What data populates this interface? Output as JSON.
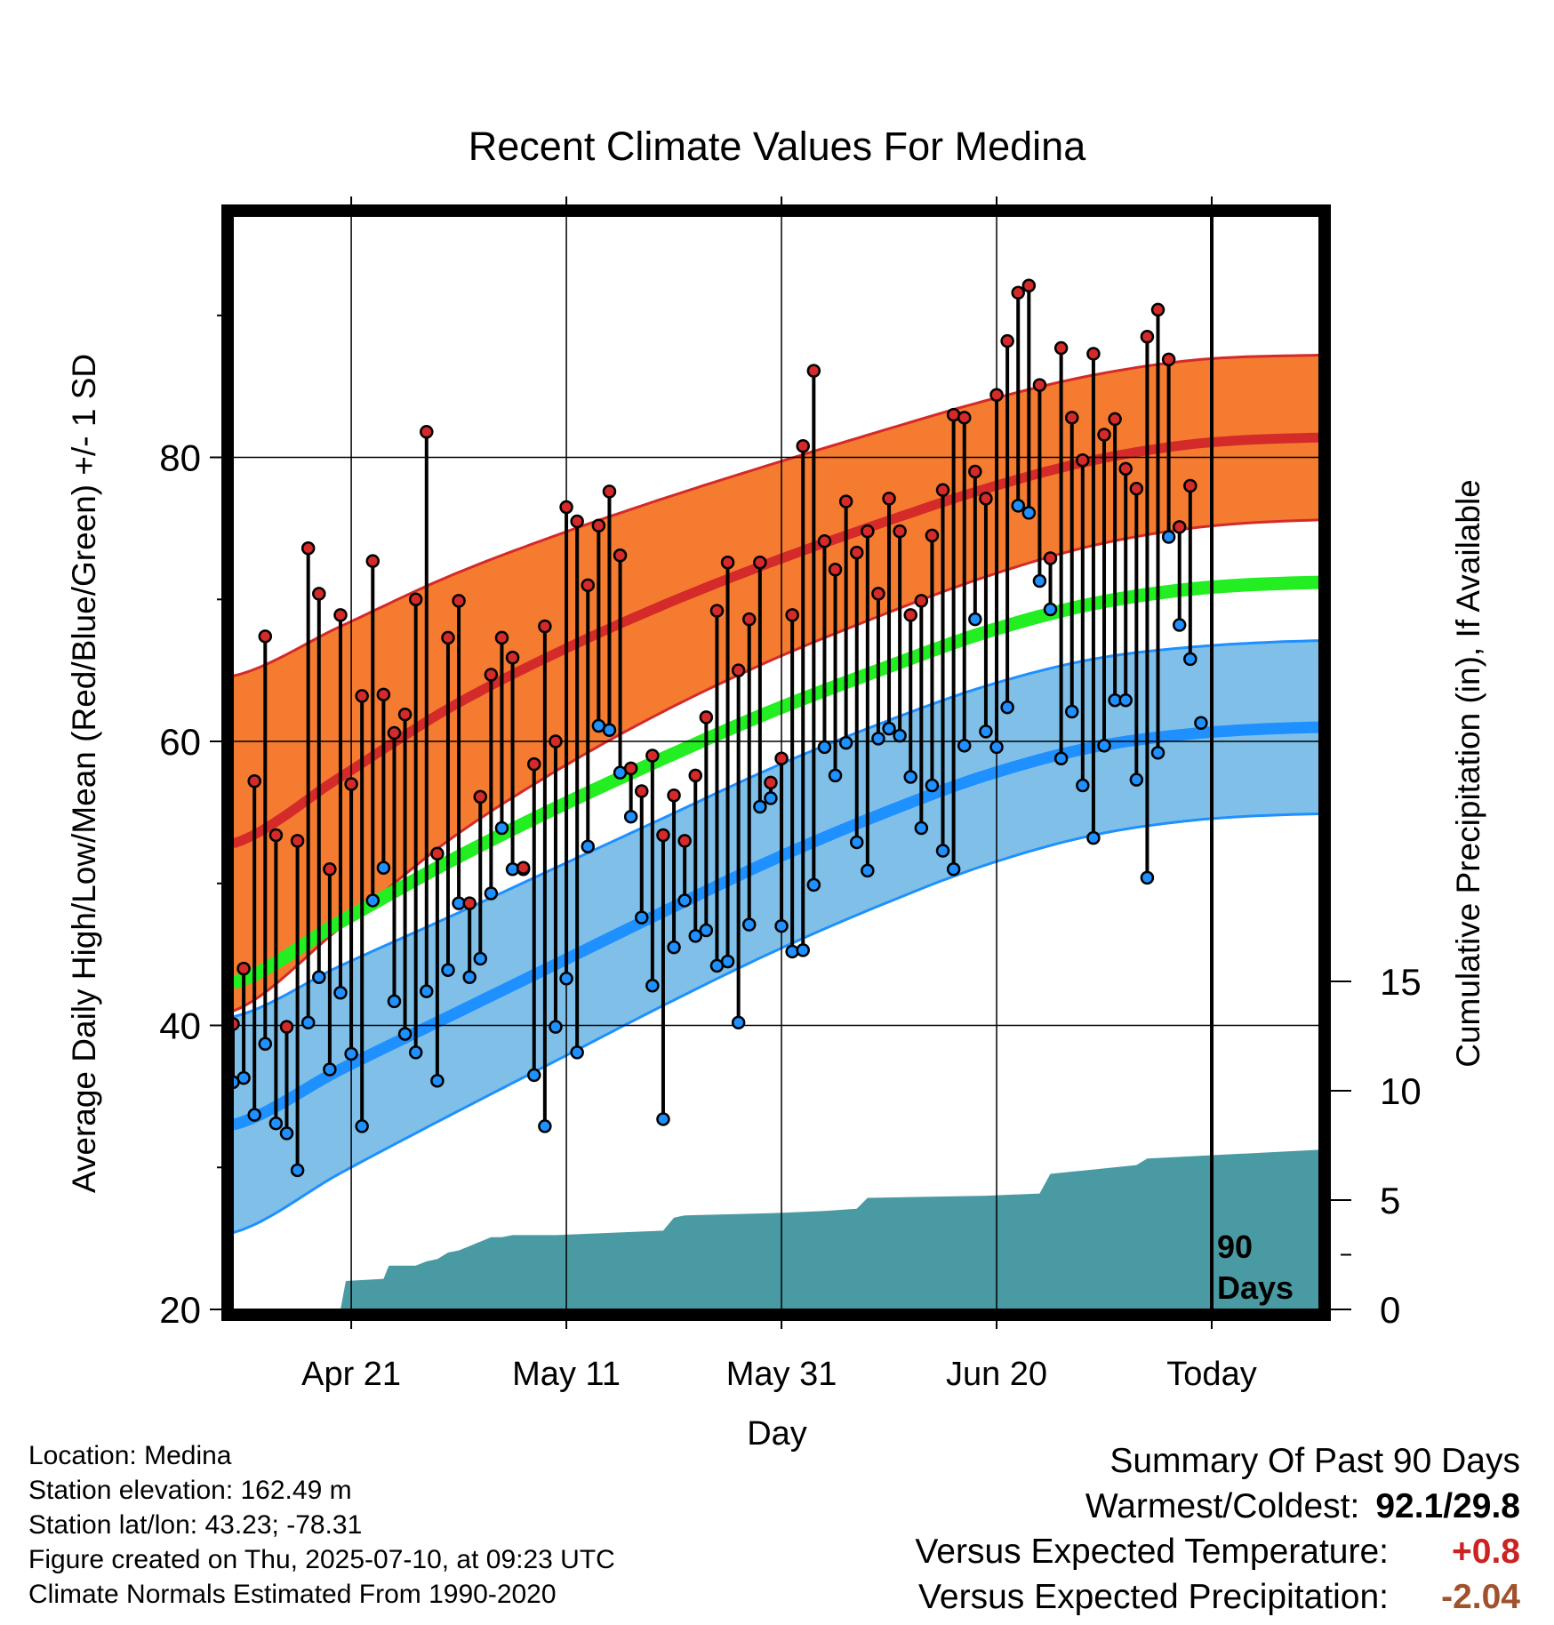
{
  "title": "Recent Climate Values For Medina",
  "info": {
    "location": "Location: Medina",
    "elevation": "Station elevation: 162.49 m",
    "latlon": "Station lat/lon: 43.23; -78.31",
    "created": "Figure created on Thu, 2025-07-10, at 09:23 UTC",
    "normals": "Climate Normals Estimated From 1990-2020"
  },
  "summary": {
    "heading": "Summary Of Past 90 Days",
    "warmest_label": "Warmest/Coldest:",
    "warmest_value": "92.1/29.8",
    "temp_label": "Versus Expected Temperature:",
    "temp_value": "+0.8",
    "temp_color": "#cc2222",
    "precip_label": "Versus Expected Precipitation:",
    "precip_value": "-2.04",
    "precip_color": "#a0522d"
  },
  "chart_data": {
    "type": "line",
    "title": "Recent Climate Values For Medina",
    "xlabel": "Day",
    "ylabel": "Average Daily High/Low/Mean (Red/Blue/Green) +/- 1 SD",
    "y2label": "Cumulative Precipitation (in), If Available",
    "xlim": [
      0,
      101
    ],
    "ylim": [
      20,
      97
    ],
    "y2lim": [
      0,
      15
    ],
    "y2_range_shown": [
      0,
      15
    ],
    "x_ticks": [
      {
        "x": 11,
        "label": "Apr 21"
      },
      {
        "x": 31,
        "label": "May 11"
      },
      {
        "x": 51,
        "label": "May 31"
      },
      {
        "x": 71,
        "label": "Jun 20"
      },
      {
        "x": 91,
        "label": "Today"
      }
    ],
    "y_ticks": [
      20,
      40,
      60,
      80
    ],
    "y_minor_ticks": [
      30,
      50,
      70,
      90
    ],
    "y2_ticks": [
      0,
      5,
      10,
      15
    ],
    "today_x": 91,
    "today_label": [
      "90",
      "Days"
    ],
    "colors": {
      "high_band": "#f47b30",
      "high_line": "#d42a2a",
      "low_band": "#80c0e8",
      "low_line": "#1e90ff",
      "mean_line": "#22ee22",
      "precip": "#4a9aa4",
      "high_dot": "#d42a2a",
      "low_dot": "#1e90ff"
    },
    "normals": {
      "x": [
        0,
        10,
        20,
        30,
        40,
        50,
        60,
        70,
        80,
        90,
        101
      ],
      "high_mean": [
        52.8,
        57.5,
        62.3,
        66.2,
        69.6,
        72.6,
        75.3,
        77.8,
        79.8,
        81.0,
        81.4
      ],
      "high_sd": [
        11.8,
        10.6,
        9.3,
        8.3,
        7.5,
        6.9,
        6.5,
        6.2,
        6.0,
        5.9,
        5.8
      ],
      "low_mean": [
        33.0,
        36.9,
        40.6,
        44.3,
        48.0,
        51.6,
        54.8,
        57.6,
        59.6,
        60.6,
        61.0
      ],
      "low_sd": [
        7.6,
        7.3,
        7.0,
        6.8,
        6.6,
        6.5,
        6.4,
        6.3,
        6.2,
        6.1,
        6.1
      ],
      "mean": [
        43.0,
        47.3,
        51.5,
        55.3,
        58.8,
        62.1,
        65.0,
        67.7,
        69.7,
        70.8,
        71.2
      ]
    },
    "daily": {
      "x": [
        0,
        1,
        2,
        3,
        4,
        5,
        6,
        7,
        8,
        9,
        10,
        11,
        12,
        13,
        14,
        15,
        16,
        17,
        18,
        19,
        20,
        21,
        22,
        23,
        24,
        25,
        26,
        27,
        28,
        29,
        30,
        31,
        32,
        33,
        34,
        35,
        36,
        37,
        38,
        39,
        40,
        41,
        42,
        43,
        44,
        45,
        46,
        47,
        48,
        49,
        50,
        51,
        52,
        53,
        54,
        55,
        56,
        57,
        58,
        59,
        60,
        61,
        62,
        63,
        64,
        65,
        66,
        67,
        68,
        69,
        70,
        71,
        72,
        73,
        74,
        75,
        76,
        77,
        78,
        79,
        80,
        81,
        82,
        83,
        84,
        85,
        86,
        87,
        88,
        89,
        90
      ],
      "high": [
        40.1,
        44.0,
        57.2,
        67.4,
        53.4,
        39.9,
        53.0,
        73.6,
        70.4,
        51.0,
        68.9,
        57.0,
        63.2,
        72.7,
        63.3,
        60.6,
        61.9,
        70.0,
        81.8,
        52.1,
        67.3,
        69.9,
        48.6,
        56.1,
        64.7,
        67.3,
        65.9,
        51.1,
        58.4,
        68.1,
        60.0,
        76.5,
        75.5,
        71.0,
        75.2,
        77.6,
        73.1,
        58.1,
        56.5,
        59.0,
        53.4,
        56.2,
        53.0,
        57.6,
        61.7,
        69.2,
        72.6,
        65.0,
        68.6,
        72.6,
        57.1,
        58.8,
        68.9,
        80.8,
        86.1,
        74.1,
        72.1,
        76.9,
        73.3,
        74.8,
        70.4,
        77.1,
        74.8,
        68.9,
        69.9,
        74.5,
        77.7,
        83.0,
        82.8,
        79.0,
        77.1,
        84.4,
        88.2,
        91.6,
        92.1,
        85.1,
        72.9,
        87.7,
        82.8,
        79.8,
        87.3,
        81.6,
        82.7,
        79.2,
        77.8,
        88.5,
        90.4,
        86.9,
        75.1,
        78.0,
        null
      ],
      "low": [
        36.0,
        36.3,
        33.7,
        38.7,
        33.1,
        32.4,
        29.8,
        40.2,
        43.4,
        36.9,
        42.3,
        38.0,
        32.9,
        48.8,
        51.1,
        41.7,
        39.4,
        38.1,
        42.4,
        36.1,
        43.9,
        48.6,
        43.4,
        44.7,
        49.3,
        53.9,
        51.0,
        51.0,
        36.5,
        32.9,
        39.9,
        43.3,
        38.1,
        52.6,
        61.1,
        60.8,
        57.8,
        54.7,
        47.6,
        42.8,
        33.4,
        45.5,
        48.8,
        46.3,
        46.7,
        44.2,
        44.5,
        40.2,
        47.1,
        55.4,
        56.0,
        47.0,
        45.2,
        45.3,
        49.9,
        59.6,
        57.6,
        59.9,
        52.9,
        50.9,
        60.2,
        60.9,
        60.4,
        57.5,
        53.9,
        56.9,
        52.3,
        51.0,
        59.7,
        68.6,
        60.7,
        59.6,
        62.4,
        76.6,
        76.1,
        71.3,
        69.3,
        58.8,
        62.1,
        56.9,
        53.2,
        59.7,
        62.9,
        62.9,
        57.3,
        50.4,
        59.2,
        74.4,
        68.2,
        65.8,
        61.3
      ]
    },
    "precip": {
      "x": [
        10,
        10.5,
        14,
        14.5,
        17,
        18,
        19,
        20,
        21,
        22,
        23,
        24,
        25,
        26,
        30,
        35,
        40,
        41,
        42,
        50,
        55,
        58,
        59,
        70,
        75,
        76,
        78,
        80,
        84,
        85,
        101
      ],
      "y": [
        0,
        1.3,
        1.4,
        2.0,
        2.0,
        2.2,
        2.3,
        2.6,
        2.7,
        2.9,
        3.1,
        3.3,
        3.3,
        3.4,
        3.4,
        3.5,
        3.6,
        4.2,
        4.3,
        4.4,
        4.5,
        4.6,
        5.1,
        5.2,
        5.3,
        6.2,
        6.3,
        6.4,
        6.6,
        6.9,
        7.3
      ]
    }
  }
}
